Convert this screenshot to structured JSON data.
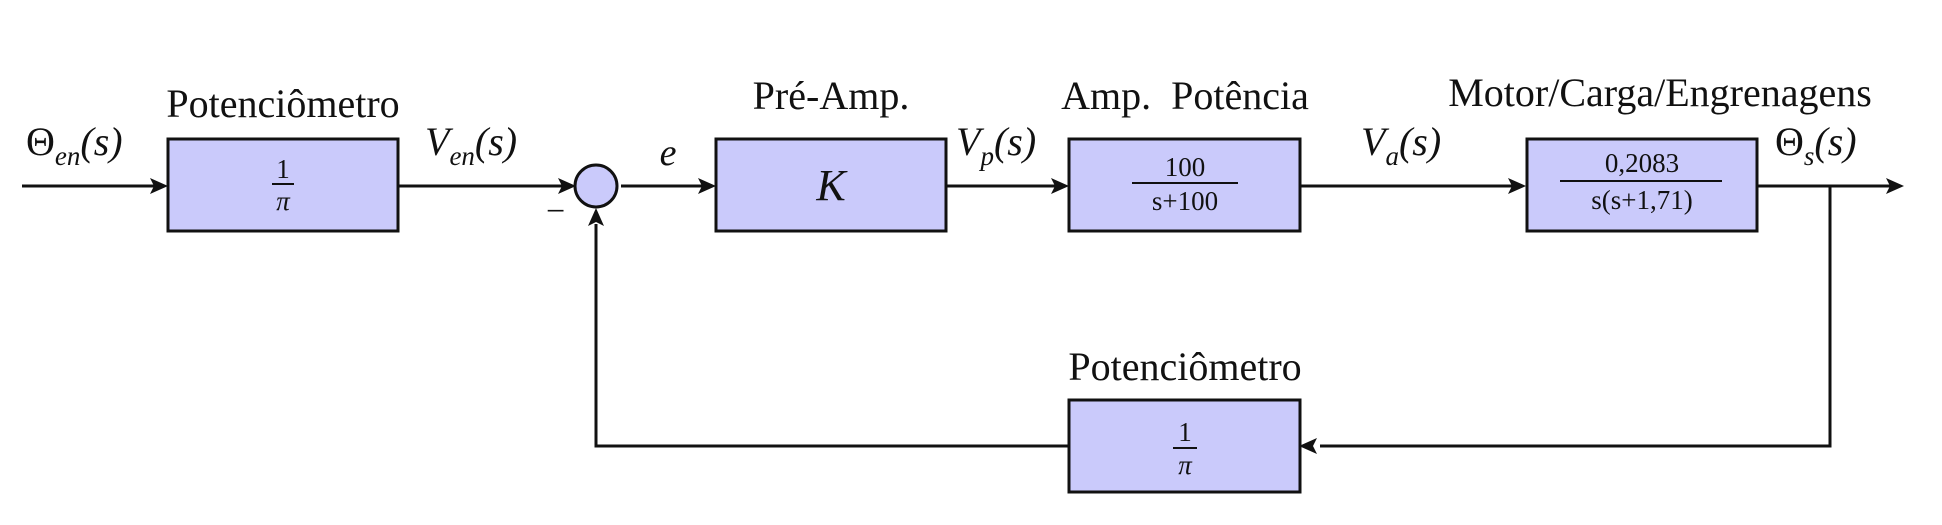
{
  "colors": {
    "block_fill": "#cacafb",
    "line": "#111111"
  },
  "blocks": {
    "input_pot": {
      "title": "Potenciômetro",
      "num": "1",
      "den": "π"
    },
    "preamp": {
      "title": "Pré-Amp.",
      "gain": "K"
    },
    "power_amp": {
      "title": "Amp.  Potência",
      "num": "100",
      "den": "s+100"
    },
    "motor": {
      "title": "Motor/Carga/Engrenagens",
      "num": "0,2083",
      "den": "s(s+1,71)"
    },
    "feedback_pot": {
      "title": "Potenciômetro",
      "num": "1",
      "den": "π"
    }
  },
  "signals": {
    "input": {
      "base": "Θ",
      "sub": "en",
      "arg": "(s)"
    },
    "v_en": {
      "base": "V",
      "sub": "en",
      "arg": "(s)"
    },
    "error": "e",
    "v_p": {
      "base": "V",
      "sub": "p",
      "arg": "(s)"
    },
    "v_a": {
      "base": "V",
      "sub": "a",
      "arg": "(s)"
    },
    "output": {
      "base": "Θ",
      "sub": "s",
      "arg": "(s)"
    }
  },
  "summing_junction": {
    "minus_sign": "−"
  }
}
